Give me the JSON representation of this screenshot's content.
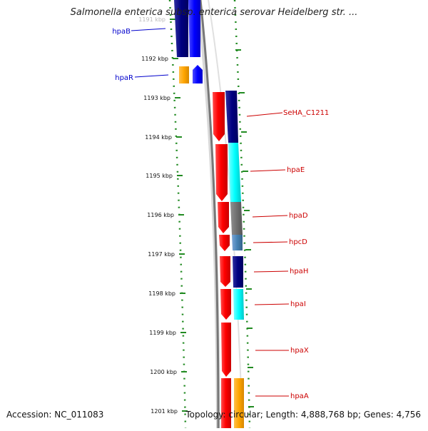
{
  "title": "Salmonella enterica subsp. enterica serovar Heidelberg str. ...",
  "accession": "Accession: NC_011083",
  "topology": "Topology: circular; Length: 4,888,768 bp; Genes: 4,756",
  "ticks": [
    "1191 kbp",
    "1192 kbp",
    "1193 kbp",
    "1194 kbp",
    "1195 kbp",
    "1196 kbp",
    "1197 kbp",
    "1198 kbp",
    "1199 kbp",
    "1200 kbp",
    "1201 kbp"
  ],
  "genes": [
    {
      "label": "hpaB",
      "color": "#0000cc"
    },
    {
      "label": "hpaR",
      "color": "#0000cc"
    },
    {
      "label": "SeHA_C1211",
      "color": "#cc0000"
    },
    {
      "label": "hpaE",
      "color": "#cc0000"
    },
    {
      "label": "hpaD",
      "color": "#cc0000"
    },
    {
      "label": "hpcD",
      "color": "#cc0000"
    },
    {
      "label": "hpaH",
      "color": "#cc0000"
    },
    {
      "label": "hpaI",
      "color": "#cc0000"
    },
    {
      "label": "hpaX",
      "color": "#cc0000"
    },
    {
      "label": "hpaA",
      "color": "#cc0000"
    }
  ]
}
